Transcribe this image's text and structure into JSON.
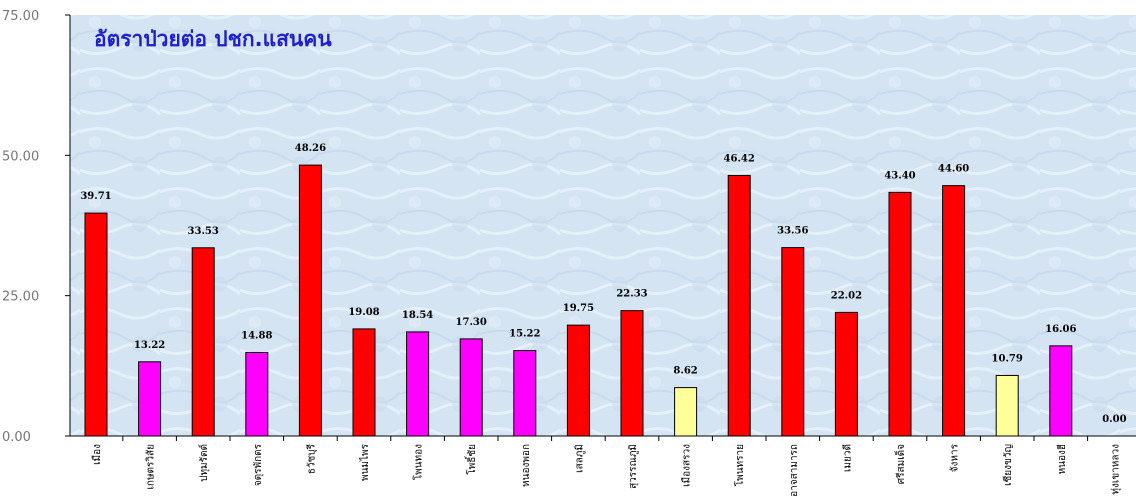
{
  "chart_data": {
    "type": "bar",
    "title": "อัตราป่วยต่อ ปชก.แสนคน",
    "xlabel": "",
    "ylabel": "",
    "ylim": [
      0,
      75
    ],
    "yticks": [
      "0.00",
      "25.00",
      "50.00",
      "75.00"
    ],
    "grid": false,
    "legend": "none",
    "categories": [
      "เมือง",
      "เกษตรวิสัย",
      "ปทุมรัตต์",
      "จตุรพักตร",
      "ธวัชบุรี",
      "พนมไพร",
      "โพนทอง",
      "โพธิ์ชัย",
      "หนองพอก",
      "เสลภูมิ",
      "สุวรรณภูมิ",
      "เมืองสรวง",
      "โพนทราย",
      "อาจสามารถ",
      "เมยวดี",
      "ศรีสมเด็จ",
      "จังหาร",
      "เชียงขวัญ",
      "หนองฮี",
      "ทุ่งเขาหลวง"
    ],
    "values": [
      39.71,
      13.22,
      33.53,
      14.88,
      48.26,
      19.08,
      18.54,
      17.3,
      15.22,
      19.75,
      22.33,
      8.62,
      46.42,
      33.56,
      22.02,
      43.4,
      44.6,
      10.79,
      16.06,
      0.0
    ],
    "value_labels": [
      "39.71",
      "13.22",
      "33.53",
      "14.88",
      "48.26",
      "19.08",
      "18.54",
      "17.30",
      "15.22",
      "19.75",
      "22.33",
      "8.62",
      "46.42",
      "33.56",
      "22.02",
      "43.40",
      "44.60",
      "10.79",
      "16.06",
      "0.00"
    ],
    "bar_colors": [
      "#ff0000",
      "#ff00ff",
      "#ff0000",
      "#ff00ff",
      "#ff0000",
      "#ff0000",
      "#ff00ff",
      "#ff00ff",
      "#ff00ff",
      "#ff0000",
      "#ff0000",
      "#ffff99",
      "#ff0000",
      "#ff0000",
      "#ff0000",
      "#ff0000",
      "#ff0000",
      "#ffff99",
      "#ff00ff",
      "#ff0000"
    ],
    "colors": {
      "background": "#d6e6f4",
      "axis": "#000000",
      "title": "#1f1fd0"
    }
  }
}
